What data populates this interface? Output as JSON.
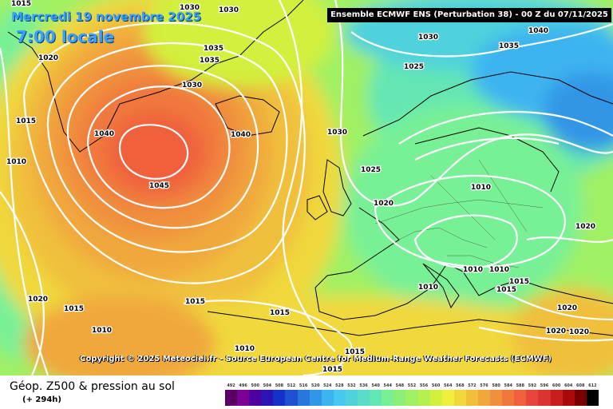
{
  "header": {
    "date": "Mercredi 19 novembre 2025",
    "time": "7:00 locale",
    "model": "Ensemble ECMWF ENS  (Perturbation 38)  - 00 Z du 07/11/2025"
  },
  "copyright": "Copyright © 2025 Meteociel.fr - Source European Centre for Medium-Range Weather Forecasts (ECMWF)",
  "footer": {
    "parameter": "Géop. Z500 & pression au sol",
    "lead_time": "(+ 294h)"
  },
  "scale": {
    "values": [
      "492",
      "496",
      "500",
      "504",
      "508",
      "512",
      "516",
      "520",
      "524",
      "528",
      "532",
      "536",
      "540",
      "544",
      "548",
      "552",
      "556",
      "560",
      "564",
      "568",
      "572",
      "576",
      "580",
      "584",
      "588",
      "592",
      "596",
      "600",
      "604",
      "608",
      "612"
    ],
    "colors": [
      "#5a0064",
      "#7a0096",
      "#5000a0",
      "#2a14b4",
      "#1432c8",
      "#1e50d2",
      "#2878dc",
      "#3296e6",
      "#3cb4f0",
      "#46c8f0",
      "#50d2dc",
      "#5adcc8",
      "#64e6b4",
      "#78f096",
      "#8cf078",
      "#a0f064",
      "#b4f050",
      "#d2f03c",
      "#f0f03c",
      "#f0d83c",
      "#f0c03c",
      "#f0a83c",
      "#f0903c",
      "#f0783c",
      "#f0603c",
      "#e6463c",
      "#dc3232",
      "#c81e1e",
      "#aa0a0a",
      "#780000",
      "#000000"
    ]
  },
  "isobar_labels": [
    {
      "text": "1015"
    },
    {
      "text": "1030"
    },
    {
      "text": "1020"
    },
    {
      "text": "1030"
    },
    {
      "text": "1040"
    },
    {
      "text": "1035"
    },
    {
      "text": "1030"
    },
    {
      "text": "1025"
    },
    {
      "text": "1035"
    },
    {
      "text": "1035"
    },
    {
      "text": "1030"
    },
    {
      "text": "1015"
    },
    {
      "text": "1010"
    },
    {
      "text": "1040"
    },
    {
      "text": "1040"
    },
    {
      "text": "1045"
    },
    {
      "text": "1030"
    },
    {
      "text": "1025"
    },
    {
      "text": "1020"
    },
    {
      "text": "1010"
    },
    {
      "text": "1020"
    },
    {
      "text": "1010"
    },
    {
      "text": "1010"
    },
    {
      "text": "1010"
    },
    {
      "text": "1015"
    },
    {
      "text": "1015"
    },
    {
      "text": "1020"
    },
    {
      "text": "1020"
    },
    {
      "text": "1020"
    },
    {
      "text": "1015"
    },
    {
      "text": "1015"
    },
    {
      "text": "1010"
    },
    {
      "text": "1020"
    },
    {
      "text": "1015"
    },
    {
      "text": "1010"
    },
    {
      "text": "1015"
    },
    {
      "text": "1015"
    }
  ],
  "colors": {
    "ocean_green": "#8cf078",
    "high_core": "#f0603c",
    "low_cyan": "#50d2dc",
    "title_blue": "#3aa0ff"
  }
}
